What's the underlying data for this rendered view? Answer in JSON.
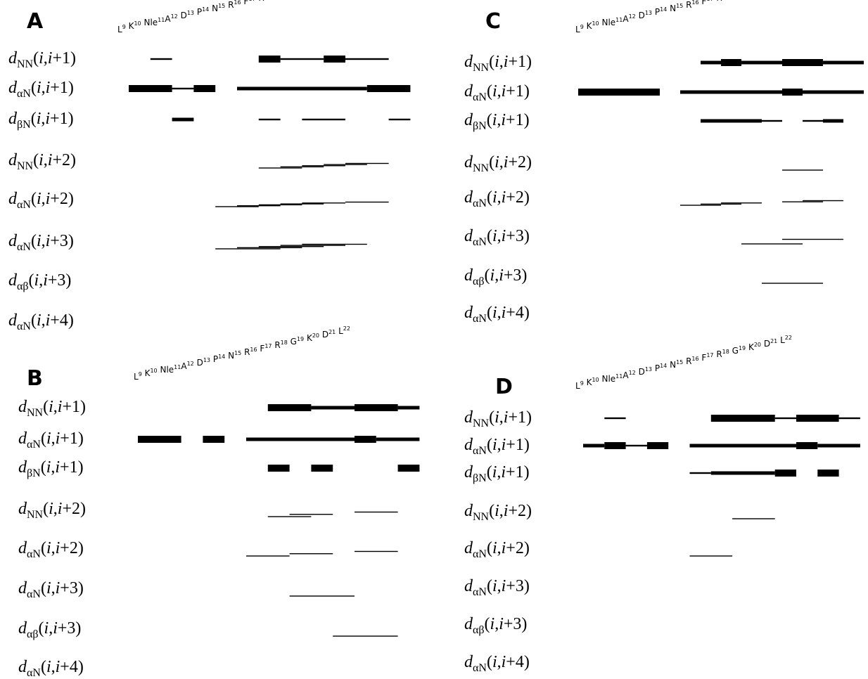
{
  "residues": [
    {
      "main": "L",
      "sup": "9"
    },
    {
      "main": "K",
      "sup": "10"
    },
    {
      "main": "Nle",
      "sup": "11"
    },
    {
      "main": "A",
      "sup": "12"
    },
    {
      "main": "D",
      "sup": "13"
    },
    {
      "main": "P",
      "sup": "14"
    },
    {
      "main": "N",
      "sup": "15"
    },
    {
      "main": "R",
      "sup": "16"
    },
    {
      "main": "F",
      "sup": "17"
    },
    {
      "main": "R",
      "sup": "18"
    },
    {
      "main": "G",
      "sup": "19"
    },
    {
      "main": "K",
      "sup": "20"
    },
    {
      "main": "D",
      "sup": "21"
    },
    {
      "main": "L",
      "sup": "22"
    }
  ],
  "row_labels": [
    {
      "d": "d",
      "sub": "NN",
      "args": "(i,i+1)"
    },
    {
      "d": "d",
      "sub": "αN",
      "args": "(i,i+1)"
    },
    {
      "d": "d",
      "sub": "βN",
      "args": "(i,i+1)"
    },
    {
      "d": "d",
      "sub": "NN",
      "args": "(i,i+2)"
    },
    {
      "d": "d",
      "sub": "αN",
      "args": "(i,i+2)"
    },
    {
      "d": "d",
      "sub": "αN",
      "args": "(i,i+3)"
    },
    {
      "d": "d",
      "sub": "αβ",
      "args": "(i,i+3)"
    },
    {
      "d": "d",
      "sub": "αN",
      "args": "(i,i+4)"
    }
  ],
  "panels": [
    {
      "letter": "A",
      "rows": [
        [
          [
            1,
            2,
            1
          ],
          [
            6,
            7,
            3
          ],
          [
            7,
            9,
            1
          ],
          [
            9,
            10,
            3
          ],
          [
            10,
            12,
            1
          ]
        ],
        [
          [
            0,
            2,
            3
          ],
          [
            2,
            3,
            1
          ],
          [
            3,
            4,
            3
          ],
          [
            5,
            11,
            2
          ],
          [
            11,
            13,
            3
          ]
        ],
        [
          [
            2,
            3,
            2
          ],
          [
            6,
            7,
            1
          ],
          [
            8,
            10,
            1
          ],
          [
            12,
            13,
            1
          ]
        ],
        [
          [
            6,
            8,
            0
          ],
          [
            7,
            9,
            0
          ],
          [
            8,
            10,
            0
          ],
          [
            9,
            11,
            0
          ],
          [
            10,
            12,
            0
          ]
        ],
        [
          [
            4,
            6,
            0
          ],
          [
            5,
            7,
            0
          ],
          [
            6,
            8,
            0
          ],
          [
            7,
            9,
            0
          ],
          [
            8,
            10,
            0
          ],
          [
            10,
            12,
            0
          ]
        ],
        [
          [
            4,
            7,
            0
          ],
          [
            5,
            8,
            0
          ],
          [
            6,
            9,
            0
          ],
          [
            7,
            10,
            0
          ],
          [
            8,
            11,
            0
          ]
        ],
        [],
        []
      ]
    },
    {
      "letter": "B",
      "rows": [
        [
          [
            6,
            8,
            3
          ],
          [
            8,
            10,
            2
          ],
          [
            10,
            12,
            3
          ],
          [
            12,
            13,
            2
          ]
        ],
        [
          [
            0,
            2,
            3
          ],
          [
            3,
            4,
            3
          ],
          [
            5,
            10,
            2
          ],
          [
            10,
            11,
            3
          ],
          [
            11,
            13,
            2
          ]
        ],
        [
          [
            6,
            7,
            3
          ],
          [
            8,
            9,
            3
          ],
          [
            12,
            13,
            3
          ]
        ],
        [
          [
            6,
            8,
            0
          ],
          [
            7,
            9,
            0
          ],
          [
            10,
            12,
            0
          ]
        ],
        [
          [
            5,
            7,
            0
          ],
          [
            7,
            9,
            0
          ],
          [
            10,
            12,
            0
          ]
        ],
        [
          [
            7,
            10,
            0
          ]
        ],
        [
          [
            9,
            12,
            0
          ]
        ],
        []
      ]
    },
    {
      "letter": "C",
      "rows": [
        [
          [
            6,
            7,
            2
          ],
          [
            7,
            8,
            3
          ],
          [
            8,
            10,
            2
          ],
          [
            10,
            12,
            3
          ],
          [
            12,
            14,
            2
          ]
        ],
        [
          [
            0,
            4,
            3
          ],
          [
            5,
            10,
            2
          ],
          [
            10,
            11,
            3
          ],
          [
            11,
            14,
            2
          ]
        ],
        [
          [
            6,
            9,
            2
          ],
          [
            9,
            10,
            1
          ],
          [
            11,
            12,
            1
          ],
          [
            12,
            13,
            2
          ]
        ],
        [
          [
            10,
            12,
            0
          ]
        ],
        [
          [
            5,
            7,
            0
          ],
          [
            6,
            8,
            0
          ],
          [
            7,
            9,
            0
          ],
          [
            10,
            12,
            0
          ],
          [
            11,
            13,
            0
          ]
        ],
        [
          [
            8,
            11,
            0
          ],
          [
            10,
            13,
            0
          ]
        ],
        [
          [
            9,
            12,
            0
          ]
        ],
        []
      ]
    },
    {
      "letter": "D",
      "rows": [
        [
          [
            1,
            2,
            1
          ],
          [
            6,
            9,
            3
          ],
          [
            9,
            10,
            1
          ],
          [
            10,
            12,
            3
          ],
          [
            12,
            13,
            1
          ]
        ],
        [
          [
            0,
            1,
            2
          ],
          [
            1,
            2,
            3
          ],
          [
            2,
            3,
            1
          ],
          [
            3,
            4,
            3
          ],
          [
            5,
            10,
            2
          ],
          [
            10,
            11,
            3
          ],
          [
            11,
            13,
            2
          ]
        ],
        [
          [
            5,
            6,
            1
          ],
          [
            6,
            9,
            2
          ],
          [
            9,
            10,
            3
          ],
          [
            11,
            12,
            3
          ]
        ],
        [
          [
            7,
            9,
            0
          ]
        ],
        [
          [
            5,
            7,
            0
          ]
        ],
        [],
        [],
        []
      ]
    }
  ]
}
